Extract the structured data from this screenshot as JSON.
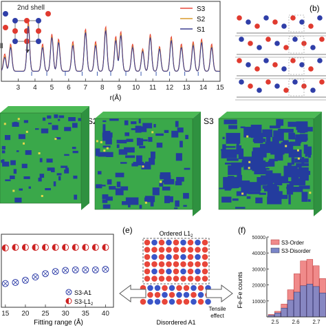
{
  "panel_a": {
    "shell_label": "2nd shell",
    "clipped_label": "ll",
    "xlabel": "r(Å)",
    "colors": {
      "S3": "#e8483b",
      "S2": "#d99a2b",
      "S1": "#3b3f8f"
    }
  },
  "panel_b": {
    "label": "(b)"
  },
  "panel_c": {
    "s2_label": "S2",
    "s3_label": "S3"
  },
  "panel_d": {
    "xlabel": "Fitting range (Å)"
  },
  "panel_e": {
    "label": "(e)",
    "top_label_main": "Ordered L1",
    "top_label_sub": "2",
    "bottom_label": "Disordered A1",
    "tensile_line1": "Tensile",
    "tensile_line2": "effect"
  },
  "panel_f": {
    "label": "(f)",
    "ylabel": "Fe-Fe counts",
    "legend": [
      "S3-Order",
      "S3-Disorder"
    ],
    "colors": {
      "order": "#f08a8a",
      "disorder": "#7b86c8"
    }
  },
  "chart_data": [
    {
      "type": "line",
      "panel": "a",
      "xlabel": "r(Å)",
      "xlim": [
        2,
        15
      ],
      "x_ticks": [
        "3",
        "4",
        "5",
        "6",
        "7",
        "8",
        "9",
        "10",
        "11",
        "12",
        "13",
        "14",
        "15"
      ],
      "legend": [
        "S3",
        "S2",
        "S1"
      ],
      "legend_position": "top-right",
      "peak_positions": [
        2.2,
        2.55,
        3.6,
        4.45,
        5.0,
        5.4,
        6.25,
        7.0,
        7.6,
        8.2,
        8.8,
        9.1,
        9.8,
        10.4,
        10.85,
        11.4,
        12.1,
        12.7,
        13.4,
        13.9,
        14.5
      ],
      "series": [
        {
          "name": "S3",
          "peak_heights": [
            0.35,
            0.55,
            1.0,
            0.55,
            0.75,
            0.65,
            0.6,
            0.85,
            0.6,
            0.9,
            0.7,
            0.8,
            0.55,
            0.45,
            0.75,
            0.5,
            0.7,
            0.55,
            0.6,
            0.65,
            0.55
          ]
        },
        {
          "name": "S2",
          "peak_heights": [
            0.3,
            0.5,
            0.95,
            0.5,
            0.7,
            0.6,
            0.55,
            0.8,
            0.55,
            0.85,
            0.65,
            0.75,
            0.5,
            0.42,
            0.7,
            0.47,
            0.65,
            0.5,
            0.55,
            0.6,
            0.5
          ]
        },
        {
          "name": "S1",
          "peak_heights": [
            0.28,
            0.48,
            0.92,
            0.48,
            0.68,
            0.58,
            0.52,
            0.78,
            0.52,
            0.82,
            0.62,
            0.72,
            0.48,
            0.4,
            0.68,
            0.45,
            0.62,
            0.48,
            0.52,
            0.58,
            0.48
          ]
        }
      ]
    },
    {
      "type": "scatter",
      "panel": "d",
      "xlabel": "Fitting range (Å)",
      "xlim": [
        14,
        42
      ],
      "x_ticks": [
        "15",
        "20",
        "25",
        "30",
        "35",
        "40"
      ],
      "legend": [
        "S3-A1",
        "S3-L12"
      ],
      "legend_position": "bottom-right",
      "series": [
        {
          "name": "S3-L12",
          "x": [
            15,
            17.5,
            20,
            22.5,
            25,
            27.5,
            30,
            32.5,
            35,
            37.5,
            40
          ],
          "y": [
            0.95,
            0.96,
            0.96,
            0.96,
            0.96,
            0.96,
            0.96,
            0.96,
            0.96,
            0.96,
            0.96
          ]
        },
        {
          "name": "S3-A1",
          "x": [
            15,
            17.5,
            20,
            22.5,
            25,
            27.5,
            30,
            32.5,
            35,
            37.5,
            40
          ],
          "y": [
            0.3,
            0.32,
            0.36,
            0.42,
            0.48,
            0.52,
            0.54,
            0.55,
            0.55,
            0.55,
            0.56
          ]
        }
      ]
    },
    {
      "type": "bar",
      "panel": "f",
      "ylabel": "Fe-Fe counts",
      "ylim": [
        0,
        50000
      ],
      "y_ticks": [
        "10000",
        "20000",
        "30000",
        "40000",
        "50000"
      ],
      "x_ticks": [
        "2.5",
        "2.6",
        "2.7"
      ],
      "categories": [
        "2.48",
        "2.52",
        "2.56",
        "2.60",
        "2.64",
        "2.68",
        "2.72",
        "2.76",
        "2.80"
      ],
      "series": [
        {
          "name": "S3-Order",
          "values": [
            1500,
            3500,
            8000,
            17000,
            27000,
            35000,
            36000,
            32000,
            24000
          ]
        },
        {
          "name": "S3-Disorder",
          "values": [
            1000,
            2500,
            5500,
            10500,
            15500,
            19500,
            20500,
            19000,
            15000
          ]
        }
      ]
    }
  ]
}
